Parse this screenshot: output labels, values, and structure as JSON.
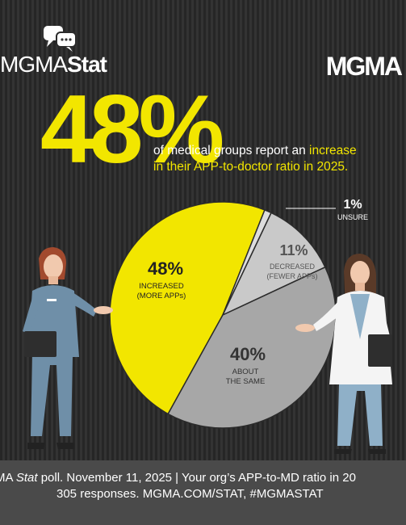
{
  "brand": {
    "left_logo_prefix": "MGMA",
    "left_logo_suffix": "Stat",
    "right_logo": "MGMA"
  },
  "headline": {
    "big_number": "48%",
    "line1_pre": "of medical groups report an ",
    "line1_highlight": "increase",
    "line2": "in their APP-to-doctor ratio in 2025."
  },
  "colors": {
    "increased": "#f2e600",
    "unsure": "#dddddd",
    "decreased": "#c9c9c9",
    "same": "#a7a7a7"
  },
  "chart_data": {
    "type": "pie",
    "slices": [
      {
        "pct": "48%",
        "label1": "INCREASED",
        "label2": "(MORE APPs)",
        "value": 48
      },
      {
        "pct": "1%",
        "label1": "UNSURE",
        "label2": "",
        "value": 1
      },
      {
        "pct": "11%",
        "label1": "DECREASED",
        "label2": "(FEWER APPs)",
        "value": 11
      },
      {
        "pct": "40%",
        "label1": "ABOUT",
        "label2": "THE SAME",
        "value": 40
      }
    ]
  },
  "footer": {
    "line1_pre": "MA ",
    "line1_italic": "Stat",
    "line1_post": " poll. November 11, 2025  |  Your org’s APP-to-MD ratio in 20",
    "line2": "305 responses. MGMA.COM/STAT, #MGMASTAT"
  }
}
